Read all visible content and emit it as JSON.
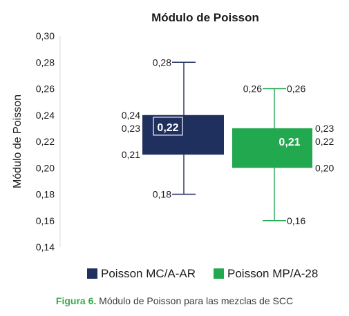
{
  "chart_data": {
    "type": "boxplot",
    "title": "Módulo de Poisson",
    "ylabel": "Módulo de Poisson",
    "ylim": [
      0.14,
      0.3
    ],
    "yticks": [
      0.3,
      0.28,
      0.26,
      0.24,
      0.22,
      0.2,
      0.18,
      0.16,
      0.14
    ],
    "ytick_labels": [
      "0,30",
      "0,28",
      "0,26",
      "0,24",
      "0,22",
      "0,20",
      "0,18",
      "0,16",
      "0,14"
    ],
    "grid": false,
    "legend_position": "bottom",
    "series": [
      {
        "name": "Poisson MC/A-AR",
        "color": "#1f2f5e",
        "max": 0.28,
        "q3": 0.24,
        "median": 0.23,
        "q1": 0.21,
        "min": 0.18,
        "labels": {
          "max": "0,28",
          "q3": "0,24",
          "median_side": "0,23",
          "q1": "0,21",
          "min": "0,18",
          "center": "0,22"
        }
      },
      {
        "name": "Poisson MP/A-28",
        "color": "#22a84e",
        "max": 0.26,
        "q3": 0.23,
        "median": 0.22,
        "q1": 0.2,
        "min": 0.16,
        "labels": {
          "max": "0,26",
          "q3": "0,23",
          "median_side": "0,22",
          "q1": "0,20",
          "min": "0,16",
          "center": "0,21"
        }
      }
    ]
  },
  "caption": {
    "figure": "Figura 6.",
    "text": " Módulo de Poisson para las mezclas de SCC"
  }
}
